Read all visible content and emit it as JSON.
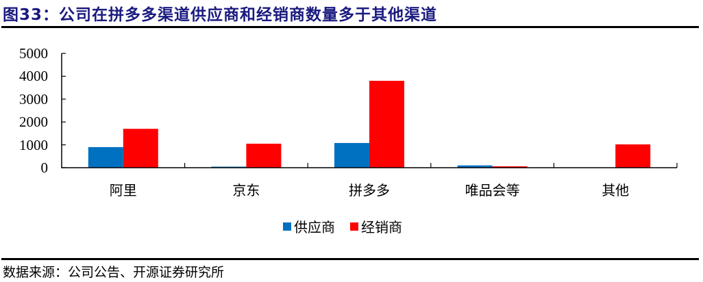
{
  "header": {
    "title": "图33：公司在拼多多渠道供应商和经销商数量多于其他渠道"
  },
  "footer": {
    "source": "数据来源：公司公告、开源证券研究所"
  },
  "colors": {
    "supplier": "#0070c0",
    "distributor": "#ff0000",
    "title": "#1a1a80",
    "axis": "#000000"
  },
  "legend": {
    "items": [
      {
        "label": "供应商",
        "color": "#0070c0"
      },
      {
        "label": "经销商",
        "color": "#ff0000"
      }
    ]
  },
  "yaxis": {
    "ticks": [
      "5000",
      "4000",
      "3000",
      "2000",
      "1000",
      "0"
    ]
  },
  "xaxis": {
    "categories": [
      "阿里",
      "京东",
      "拼多多",
      "唯品会等",
      "其他"
    ]
  },
  "chart_data": {
    "type": "bar",
    "title": "公司在拼多多渠道供应商和经销商数量多于其他渠道",
    "categories": [
      "阿里",
      "京东",
      "拼多多",
      "唯品会等",
      "其他"
    ],
    "series": [
      {
        "name": "供应商",
        "color": "#0070c0",
        "values": [
          900,
          10,
          1080,
          100,
          0
        ]
      },
      {
        "name": "经销商",
        "color": "#ff0000",
        "values": [
          1700,
          1050,
          3800,
          60,
          1020
        ]
      }
    ],
    "xlabel": "",
    "ylabel": "",
    "ylim": [
      0,
      5000
    ],
    "yticks": [
      0,
      1000,
      2000,
      3000,
      4000,
      5000
    ],
    "grid": false,
    "legend_position": "bottom"
  }
}
